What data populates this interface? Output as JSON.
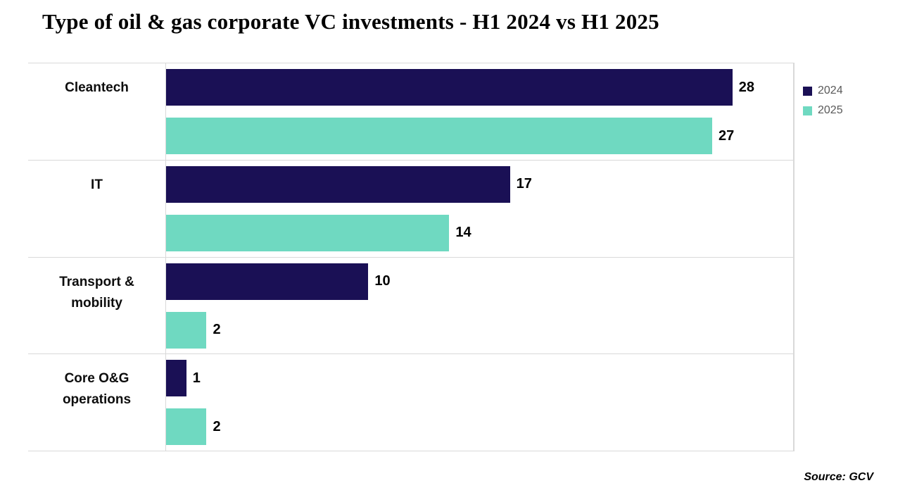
{
  "chart_data": {
    "type": "bar",
    "orientation": "horizontal",
    "title": "Type of oil & gas corporate VC investments - H1 2024 vs H1 2025",
    "categories": [
      "Cleantech",
      "IT",
      "Transport & mobility",
      "Core O&G operations"
    ],
    "series": [
      {
        "name": "2024",
        "color": "#1A1055",
        "values": [
          28,
          17,
          10,
          1
        ]
      },
      {
        "name": "2025",
        "color": "#6FD9C1",
        "values": [
          27,
          14,
          2,
          2
        ]
      }
    ],
    "xlim": [
      0,
      31
    ],
    "value_labels": true,
    "legend_position": "right",
    "grid": "horizontal category separators"
  },
  "source_note": "Source: GCV",
  "colors": {
    "gridline": "#D9D9D9",
    "legend_text": "#595959",
    "text": "#000000",
    "background": "#FFFFFF"
  }
}
